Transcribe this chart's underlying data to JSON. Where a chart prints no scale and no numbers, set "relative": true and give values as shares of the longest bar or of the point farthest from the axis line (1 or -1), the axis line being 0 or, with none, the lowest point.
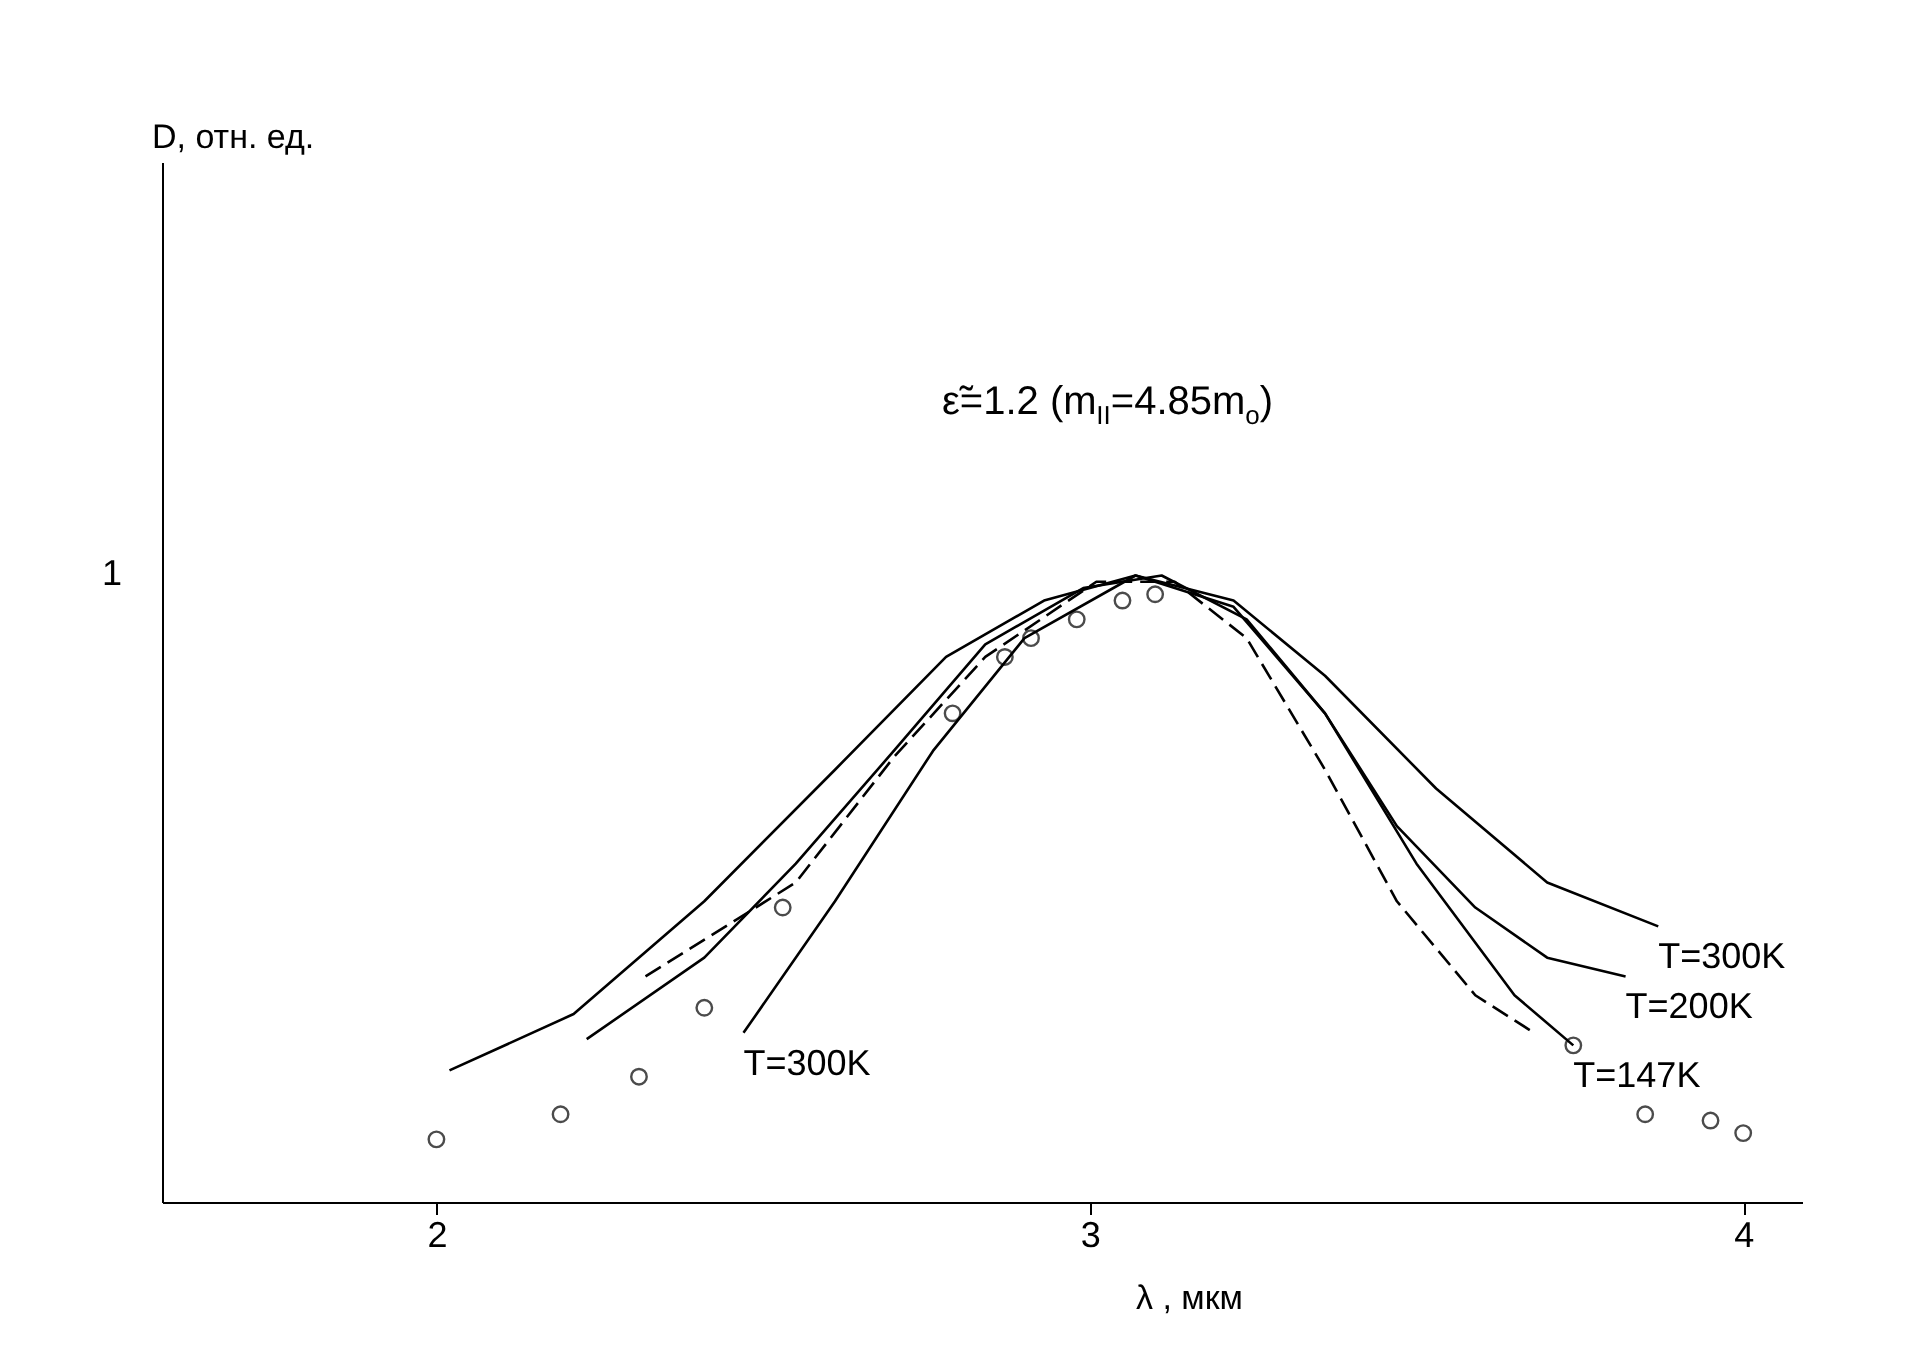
{
  "chart_data": {
    "type": "line",
    "relative": true,
    "xlabel": "λ , мкм",
    "xlim": [
      1.58,
      4.09
    ],
    "xticks": [
      2,
      3,
      4
    ],
    "grid": false,
    "series": [
      {
        "color": "#000000",
        "line_style": "solid",
        "x": [
          2.02,
          2.21,
          2.41,
          2.61,
          2.78,
          2.93,
          3.07,
          3.22,
          3.36,
          3.53,
          3.7,
          3.87
        ],
        "values": [
          0.21,
          0.3,
          0.48,
          0.69,
          0.87,
          0.96,
          1.0,
          0.96,
          0.84,
          0.66,
          0.51,
          0.44
        ]
      },
      {
        "color": "#000000",
        "line_style": "solid",
        "x": [
          2.23,
          2.41,
          2.55,
          2.7,
          2.84,
          2.99,
          3.11,
          3.24,
          3.36,
          3.47,
          3.59,
          3.7,
          3.82
        ],
        "values": [
          0.26,
          0.39,
          0.54,
          0.72,
          0.89,
          0.98,
          1.0,
          0.93,
          0.78,
          0.6,
          0.47,
          0.39,
          0.36
        ]
      },
      {
        "color": "#000000",
        "line_style": "solid",
        "x": [
          2.47,
          2.61,
          2.76,
          2.9,
          3.07,
          3.22,
          3.36,
          3.5,
          3.65,
          3.74
        ],
        "values": [
          0.27,
          0.48,
          0.72,
          0.9,
          1.0,
          0.95,
          0.78,
          0.54,
          0.33,
          0.25
        ]
      },
      {
        "color": "#000000",
        "line_style": "dashed",
        "x": [
          2.32,
          2.55,
          2.7,
          2.84,
          3.01,
          3.13,
          3.24,
          3.36,
          3.47,
          3.59,
          3.68
        ],
        "values": [
          0.36,
          0.51,
          0.71,
          0.87,
          0.99,
          0.99,
          0.9,
          0.69,
          0.48,
          0.33,
          0.27
        ]
      },
      {
        "type": "scatter",
        "marker": "circle",
        "color": "#000000",
        "x": [
          2.0,
          2.19,
          2.31,
          2.41,
          2.53,
          2.79,
          2.87,
          2.91,
          2.98,
          3.05,
          3.1,
          3.74,
          3.85,
          3.95,
          4.0
        ],
        "values": [
          0.1,
          0.14,
          0.2,
          0.31,
          0.47,
          0.78,
          0.87,
          0.9,
          0.93,
          0.96,
          0.97,
          0.25,
          0.14,
          0.13,
          0.11
        ]
      }
    ],
    "annotations": [
      "ε̃=1.2 (m$_{II}$=4.85m$_{o}$)",
      "1",
      "D, отн. ед.",
      {
        "text": "T=300K",
        "x": 3.87,
        "y": 0.44
      },
      {
        "text": "T=200K",
        "x": 3.82,
        "y": 0.36
      },
      {
        "text": "T=147K",
        "x": 3.74,
        "y": 0.25
      },
      {
        "text": "T=300K",
        "x": 2.47,
        "y": 0.27
      }
    ]
  }
}
